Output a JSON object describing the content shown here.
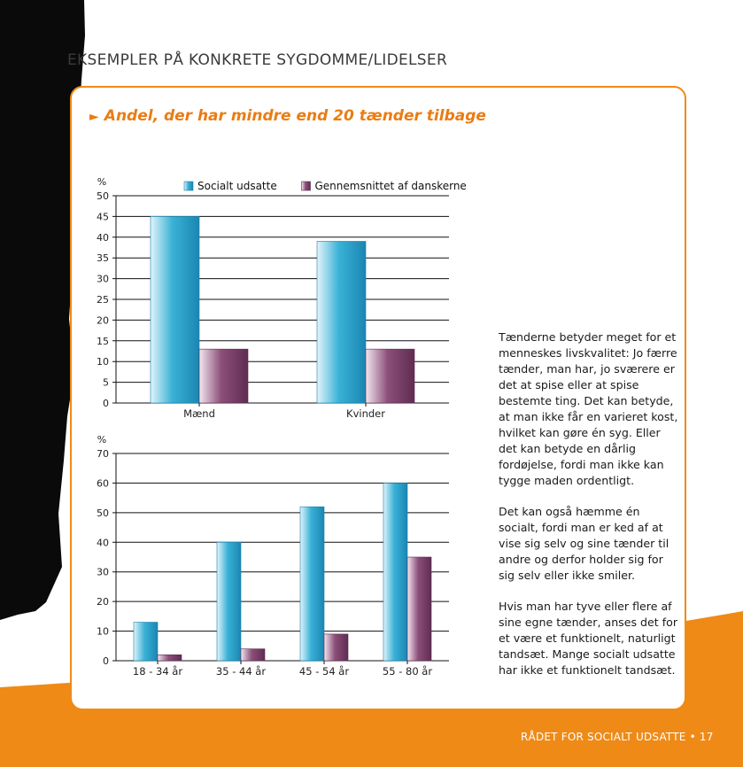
{
  "page": {
    "section_title": "EKSEMPLER PÅ KONKRETE SYGDOMME/LIDELSER",
    "card_title": "Andel, der har mindre end 20 tænder tilbage",
    "footer": "RÅDET FOR SOCIALT UDSATTE  •  17",
    "accent_color": "#ef8a17",
    "paragraphs": [
      "Tænderne betyder meget for et menneskes livskvalitet: Jo færre tænder, man har, jo sværere er det at spise eller at spise bestemte ting. Det kan betyde, at man ikke får en varieret kost, hvilket kan gøre én syg. Eller det kan betyde en dårlig fordøjelse, fordi man ikke kan tygge maden ordentligt.",
      "Det kan også hæmme én socialt, fordi man er ked af at vise sig selv og sine tænder til andre og derfor holder sig for sig selv eller ikke smiler.",
      "Hvis man har tyve eller flere af sine egne tænder, anses det for et være et funktionelt, naturligt tandsæt. Mange socialt udsatte har ikke et funktionelt tandsæt."
    ]
  },
  "chart_data": [
    {
      "type": "bar",
      "title": "",
      "ylabel": "%",
      "ylim": [
        0,
        50
      ],
      "yticks": [
        0,
        5,
        10,
        15,
        20,
        25,
        30,
        35,
        40,
        45,
        50
      ],
      "categories": [
        "Mænd",
        "Kvinder"
      ],
      "series": [
        {
          "name": "Socialt udsatte",
          "values": [
            45,
            39
          ],
          "color": "#3ab1d6"
        },
        {
          "name": "Gennemsnittet af danskerne",
          "values": [
            13,
            13
          ],
          "color": "#8c4f79"
        }
      ],
      "grid": true,
      "legend": "top"
    },
    {
      "type": "bar",
      "title": "",
      "ylabel": "%",
      "ylim": [
        0,
        70
      ],
      "yticks": [
        0,
        10,
        20,
        30,
        40,
        50,
        60,
        70
      ],
      "categories": [
        "18 - 34 år",
        "35 - 44 år",
        "45 - 54 år",
        "55 - 80 år"
      ],
      "series": [
        {
          "name": "Socialt udsatte",
          "values": [
            13,
            40,
            52,
            60
          ],
          "color": "#3ab1d6"
        },
        {
          "name": "Gennemsnittet af danskerne",
          "values": [
            2,
            4,
            9,
            35
          ],
          "color": "#8c4f79"
        }
      ],
      "grid": true,
      "legend": "none"
    }
  ]
}
